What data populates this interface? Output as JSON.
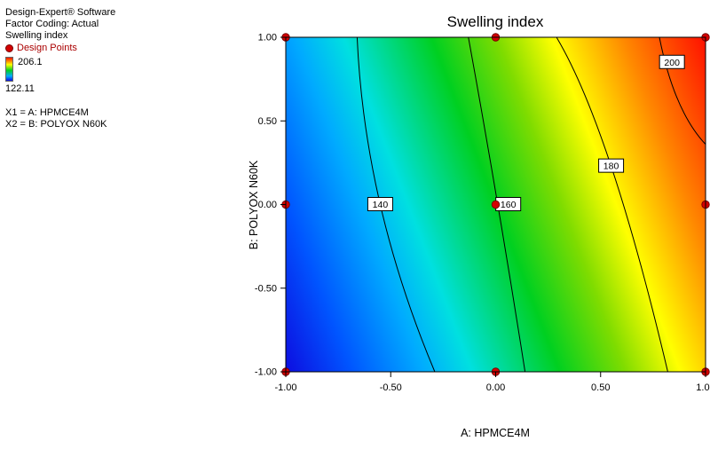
{
  "legend": {
    "software": "Design-Expert® Software",
    "factor_coding": "Factor Coding: Actual",
    "response": "Swelling index",
    "design_points_label": "Design Points",
    "scale_max": "206.1",
    "scale_min": "122.11",
    "x1": "X1 = A: HPMCE4M",
    "x2": "X2 = B: POLYOX N60K"
  },
  "chart_data": {
    "type": "contour",
    "title": "Swelling index",
    "xlabel": "A: HPMCE4M",
    "ylabel": "B: POLYOX N60K",
    "xlim": [
      -1.0,
      1.0
    ],
    "ylim": [
      -1.0,
      1.0
    ],
    "x_ticks": [
      "-1.00",
      "-0.50",
      "0.00",
      "0.50",
      "1.00"
    ],
    "y_ticks": [
      "1.00",
      "0.50",
      "0.00",
      "-0.50",
      "-1.00"
    ],
    "z_min": 122.11,
    "z_max": 206.1,
    "contour_levels": [
      140,
      160,
      180,
      200
    ],
    "contours": [
      {
        "level": "140",
        "points": [
          [
            -0.66,
            1.0
          ],
          [
            -0.55,
            0.0
          ],
          [
            -0.29,
            -1.0
          ]
        ],
        "label_at": [
          -0.55,
          0.0
        ]
      },
      {
        "level": "160",
        "points": [
          [
            -0.13,
            1.0
          ],
          [
            0.01,
            0.0
          ],
          [
            0.14,
            -1.0
          ]
        ],
        "label_at": [
          0.06,
          0.0
        ]
      },
      {
        "level": "180",
        "points": [
          [
            0.29,
            1.0
          ],
          [
            0.55,
            0.23
          ],
          [
            0.82,
            -1.0
          ]
        ],
        "label_at": [
          0.55,
          0.23
        ]
      },
      {
        "level": "200",
        "points": [
          [
            0.78,
            1.0
          ],
          [
            0.87,
            0.62
          ],
          [
            1.0,
            0.36
          ]
        ],
        "label_at": [
          0.84,
          0.85
        ]
      }
    ],
    "design_points": [
      [
        -1,
        1
      ],
      [
        0,
        1
      ],
      [
        1,
        1
      ],
      [
        -1,
        0
      ],
      [
        0,
        0
      ],
      [
        1,
        0
      ],
      [
        -1,
        -1
      ],
      [
        0,
        -1
      ],
      [
        1,
        -1
      ]
    ],
    "gradient_stops": [
      {
        "t": 0.0,
        "color": "#0d0de0"
      },
      {
        "t": 0.12,
        "color": "#0055ff"
      },
      {
        "t": 0.25,
        "color": "#00aaff"
      },
      {
        "t": 0.34,
        "color": "#00e0e0"
      },
      {
        "t": 0.5,
        "color": "#00d020"
      },
      {
        "t": 0.62,
        "color": "#7fdc00"
      },
      {
        "t": 0.72,
        "color": "#ffff00"
      },
      {
        "t": 0.85,
        "color": "#ff8800"
      },
      {
        "t": 1.0,
        "color": "#ff1000"
      }
    ]
  },
  "colors": {
    "design_point_fill": "#d40000",
    "design_point_stroke": "#7a0000",
    "contour_line": "#000000",
    "legend_accent": "#aa0000"
  }
}
